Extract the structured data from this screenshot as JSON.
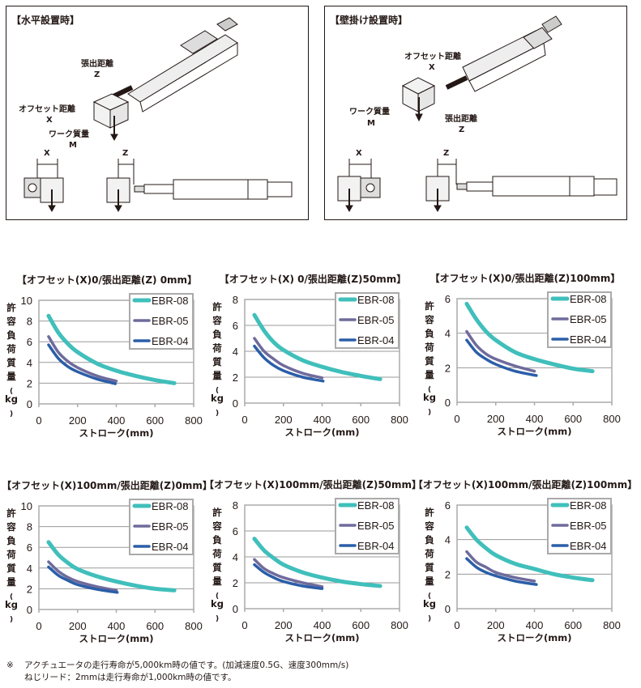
{
  "diagrams": {
    "horizontal": {
      "title": "【水平設置時】",
      "z_label": "張出距離",
      "z": "Z",
      "x_label": "オフセット距離",
      "x": "X",
      "m_label": "ワーク質量",
      "m": "M",
      "side_x": "X",
      "side_z": "Z"
    },
    "wall": {
      "title": "【壁掛け設置時】",
      "x_label": "オフセット距離",
      "x": "X",
      "m_label": "ワーク質量",
      "m": "M",
      "z_label": "張出距離",
      "z": "Z",
      "side_x": "X",
      "side_z": "Z"
    }
  },
  "colors": {
    "EBR-08": "#40bfbb",
    "EBR-05": "#6f6b9c",
    "EBR-04": "#2b5ea8"
  },
  "chart_data": [
    {
      "type": "line",
      "title": "【オフセット(X)0/張出距離(Z) 0mm】",
      "xlabel": "ストローク(mm)",
      "ylabel": "許容負荷質量(kg)",
      "xlim": [
        0,
        800
      ],
      "ylim": [
        0,
        10
      ],
      "xticks": [
        0,
        200,
        400,
        600,
        800
      ],
      "yticks": [
        0,
        2,
        4,
        6,
        8,
        10
      ],
      "grid": true,
      "legend": "top-right",
      "series": [
        {
          "name": "EBR-08",
          "x": [
            50,
            100,
            150,
            200,
            300,
            400,
            500,
            600,
            700
          ],
          "y": [
            8.5,
            6.9,
            5.8,
            5.0,
            3.9,
            3.2,
            2.7,
            2.3,
            2.0
          ]
        },
        {
          "name": "EBR-05",
          "x": [
            50,
            100,
            150,
            200,
            300,
            400
          ],
          "y": [
            6.5,
            5.0,
            4.1,
            3.5,
            2.7,
            2.2
          ]
        },
        {
          "name": "EBR-04",
          "x": [
            50,
            100,
            150,
            200,
            300,
            395
          ],
          "y": [
            5.7,
            4.4,
            3.6,
            3.1,
            2.4,
            1.95
          ]
        }
      ]
    },
    {
      "type": "line",
      "title": "【オフセット(X) 0/張出距離(Z)50mm】",
      "xlabel": "ストローク(mm)",
      "ylabel": "許容負荷質量(kg)",
      "xlim": [
        0,
        800
      ],
      "ylim": [
        0,
        8
      ],
      "xticks": [
        0,
        200,
        400,
        600,
        800
      ],
      "yticks": [
        0,
        2,
        4,
        6,
        8
      ],
      "grid": true,
      "legend": "top-right",
      "series": [
        {
          "name": "EBR-08",
          "x": [
            50,
            100,
            150,
            200,
            300,
            400,
            500,
            600,
            700
          ],
          "y": [
            6.8,
            5.6,
            4.7,
            4.1,
            3.3,
            2.8,
            2.4,
            2.1,
            1.85
          ]
        },
        {
          "name": "EBR-05",
          "x": [
            50,
            100,
            150,
            200,
            300,
            400
          ],
          "y": [
            5.0,
            4.0,
            3.4,
            2.9,
            2.3,
            1.95
          ]
        },
        {
          "name": "EBR-04",
          "x": [
            50,
            100,
            150,
            200,
            300,
            405
          ],
          "y": [
            4.4,
            3.5,
            2.9,
            2.5,
            2.0,
            1.7
          ]
        }
      ]
    },
    {
      "type": "line",
      "title": "【オフセット(X)0/張出距離(Z)100mm】",
      "xlabel": "ストローク(mm)",
      "ylabel": "許容負荷質量(kg)",
      "xlim": [
        0,
        800
      ],
      "ylim": [
        0,
        6
      ],
      "xticks": [
        0,
        200,
        400,
        600,
        800
      ],
      "yticks": [
        0,
        2,
        4,
        6
      ],
      "grid": true,
      "legend": "top-right",
      "series": [
        {
          "name": "EBR-08",
          "x": [
            50,
            100,
            150,
            200,
            300,
            400,
            500,
            600,
            700
          ],
          "y": [
            5.7,
            4.8,
            4.1,
            3.6,
            2.9,
            2.5,
            2.2,
            1.95,
            1.8
          ]
        },
        {
          "name": "EBR-05",
          "x": [
            50,
            100,
            150,
            200,
            300,
            400
          ],
          "y": [
            4.1,
            3.3,
            2.8,
            2.5,
            2.1,
            1.8
          ]
        },
        {
          "name": "EBR-04",
          "x": [
            50,
            100,
            150,
            200,
            300,
            410
          ],
          "y": [
            3.6,
            2.9,
            2.5,
            2.2,
            1.8,
            1.55
          ]
        }
      ]
    },
    {
      "type": "line",
      "title": "【オフセット(X)100mm/張出距離(Z)0mm】",
      "xlabel": "ストローク(mm)",
      "ylabel": "許容負荷質量(kg)",
      "xlim": [
        0,
        800
      ],
      "ylim": [
        0,
        10
      ],
      "xticks": [
        0,
        200,
        400,
        600,
        800
      ],
      "yticks": [
        0,
        2,
        4,
        6,
        8,
        10
      ],
      "grid": true,
      "legend": "top-right",
      "series": [
        {
          "name": "EBR-08",
          "x": [
            50,
            100,
            150,
            200,
            300,
            400,
            500,
            600,
            700
          ],
          "y": [
            6.5,
            5.3,
            4.5,
            3.9,
            3.2,
            2.7,
            2.3,
            2.0,
            1.85
          ]
        },
        {
          "name": "EBR-05",
          "x": [
            50,
            100,
            150,
            200,
            300,
            400
          ],
          "y": [
            4.6,
            3.7,
            3.1,
            2.7,
            2.2,
            1.85
          ]
        },
        {
          "name": "EBR-04",
          "x": [
            50,
            100,
            150,
            200,
            300,
            405
          ],
          "y": [
            4.1,
            3.3,
            2.8,
            2.4,
            1.95,
            1.65
          ]
        }
      ]
    },
    {
      "type": "line",
      "title": "【オフセット(X)100mm/張出距離(Z)50mm】",
      "xlabel": "ストローク(mm)",
      "ylabel": "許容負荷質量(kg)",
      "xlim": [
        0,
        800
      ],
      "ylim": [
        0,
        8
      ],
      "xticks": [
        0,
        200,
        400,
        600,
        800
      ],
      "yticks": [
        0,
        2,
        4,
        6,
        8
      ],
      "grid": true,
      "legend": "top-right",
      "series": [
        {
          "name": "EBR-08",
          "x": [
            50,
            100,
            150,
            200,
            300,
            400,
            500,
            600,
            700
          ],
          "y": [
            5.4,
            4.5,
            3.9,
            3.4,
            2.8,
            2.4,
            2.1,
            1.9,
            1.75
          ]
        },
        {
          "name": "EBR-05",
          "x": [
            50,
            100,
            150,
            200,
            300,
            400
          ],
          "y": [
            3.8,
            3.1,
            2.7,
            2.4,
            2.0,
            1.7
          ]
        },
        {
          "name": "EBR-04",
          "x": [
            50,
            100,
            150,
            200,
            300,
            400
          ],
          "y": [
            3.4,
            2.8,
            2.4,
            2.1,
            1.75,
            1.55
          ]
        }
      ]
    },
    {
      "type": "line",
      "title": "【オフセット(X)100mm/張出距離(Z)100mm】",
      "xlabel": "ストローク(mm)",
      "ylabel": "許容負荷質量(kg)",
      "xlim": [
        0,
        800
      ],
      "ylim": [
        0,
        6
      ],
      "xticks": [
        0,
        200,
        400,
        600,
        800
      ],
      "yticks": [
        0,
        2,
        4,
        6
      ],
      "grid": true,
      "legend": "top-right",
      "series": [
        {
          "name": "EBR-08",
          "x": [
            50,
            100,
            150,
            200,
            300,
            400,
            500,
            600,
            700
          ],
          "y": [
            4.7,
            4.0,
            3.5,
            3.1,
            2.6,
            2.3,
            2.0,
            1.8,
            1.65
          ]
        },
        {
          "name": "EBR-05",
          "x": [
            50,
            100,
            150,
            200,
            300,
            400
          ],
          "y": [
            3.3,
            2.7,
            2.4,
            2.1,
            1.8,
            1.6
          ]
        },
        {
          "name": "EBR-04",
          "x": [
            50,
            100,
            150,
            200,
            300,
            410
          ],
          "y": [
            2.9,
            2.4,
            2.1,
            1.9,
            1.6,
            1.4
          ]
        }
      ]
    }
  ],
  "footnote": {
    "mark": "※",
    "line1": "アクチュエータの走行寿命が5,000km時の値です。(加減速度0.5G、速度300mm/s)",
    "line2": "ねじリード：2mmは走行寿命が1,000km時の値です。"
  }
}
